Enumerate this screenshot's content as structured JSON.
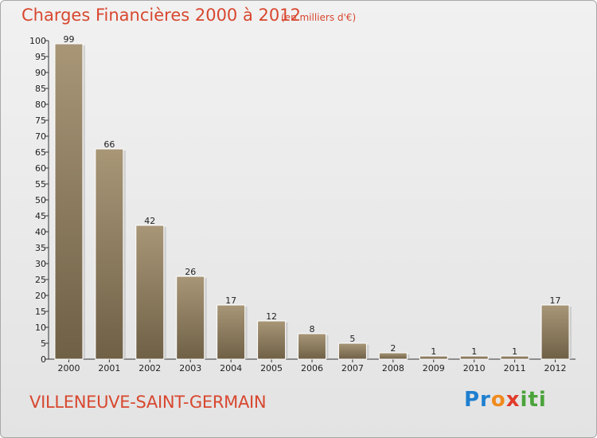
{
  "chart_data": {
    "type": "bar",
    "title": "Charges Financières 2000 à 2012",
    "subtitle": "(en milliers d'€)",
    "categories": [
      "2000",
      "2001",
      "2002",
      "2003",
      "2004",
      "2005",
      "2006",
      "2007",
      "2008",
      "2009",
      "2010",
      "2011",
      "2012"
    ],
    "values": [
      99,
      66,
      42,
      26,
      17,
      12,
      8,
      5,
      2,
      1,
      1,
      1,
      17
    ],
    "ylim": [
      0,
      100
    ],
    "yticks": [
      0,
      5,
      10,
      15,
      20,
      25,
      30,
      35,
      40,
      45,
      50,
      55,
      60,
      65,
      70,
      75,
      80,
      85,
      90,
      95,
      100
    ],
    "grid": false,
    "bar_color": "#8e7d63"
  },
  "footer": {
    "commune": "VILLENEUVE-SAINT-GERMAIN",
    "logo": "Proxiti"
  },
  "colors": {
    "accent": "#d8472f",
    "logo_blue": "#1f7fd0",
    "logo_orange": "#f08a1c",
    "logo_red": "#e23b2a",
    "logo_green": "#4aa33a"
  }
}
